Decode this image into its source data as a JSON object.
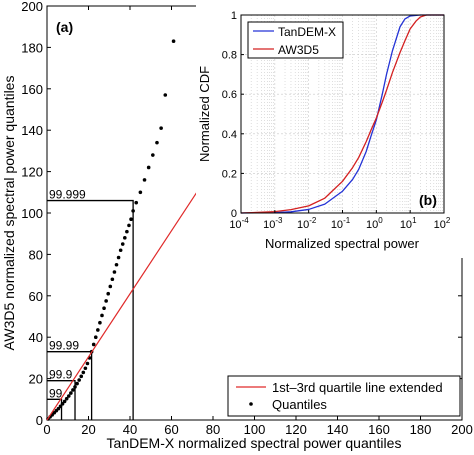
{
  "chart_data": [
    {
      "panel_label": "(a)",
      "type": "scatter",
      "xlabel": "TanDEM-X  normalized spectral power quantiles",
      "ylabel": "AW3D5 normalized spectral power quantiles",
      "xlim": [
        0,
        200
      ],
      "ylim": [
        0,
        200
      ],
      "xticks": [
        0,
        20,
        40,
        60,
        80,
        100,
        120,
        140,
        160,
        180,
        200
      ],
      "yticks": [
        0,
        20,
        40,
        60,
        80,
        100,
        120,
        140,
        160,
        180,
        200
      ],
      "grid": false,
      "legend_position": "bottom-right",
      "legend": [
        "1st–3rd quartile line extended",
        "Quantiles"
      ],
      "series": [
        {
          "name": "Quantiles",
          "style": "dots",
          "color": "#000000",
          "x": [
            0.5,
            1.5,
            2.5,
            3.5,
            4.5,
            5.5,
            6.5,
            7.5,
            8.5,
            9.5,
            10.5,
            11.5,
            12.5,
            13.5,
            14.5,
            15.5,
            16.5,
            17.5,
            18.5,
            19.5,
            20.5,
            21.5,
            22.5,
            23.5,
            24.5,
            25.5,
            26.5,
            27.5,
            28.5,
            29.5,
            30.5,
            31.5,
            32.5,
            33.5,
            34.5,
            35.5,
            36.5,
            37.5,
            38.5,
            39.5,
            40.5,
            41.5,
            43,
            45,
            47,
            49,
            51,
            53,
            55,
            57,
            61
          ],
          "y": [
            0.5,
            1.5,
            2.5,
            3.5,
            4.5,
            5.5,
            6.6,
            7.8,
            9,
            10.3,
            11.6,
            13,
            14.5,
            16,
            17.6,
            19.3,
            21.1,
            23,
            25,
            27.3,
            30,
            33,
            36.5,
            40,
            43.5,
            47,
            50.5,
            54,
            57.5,
            61,
            64.5,
            68,
            71.5,
            75,
            78.5,
            82,
            85,
            88,
            91,
            94,
            97,
            101,
            105,
            110,
            116,
            122,
            128,
            134,
            141,
            157,
            183
          ]
        },
        {
          "name": "1st–3rd quartile line extended",
          "style": "line",
          "color": "#e02a2a",
          "x": [
            0,
            73.5
          ],
          "y": [
            0,
            112
          ]
        }
      ],
      "annotations": [
        {
          "label": "99.999",
          "x": 41.5,
          "y": 106
        },
        {
          "label": "99.99",
          "x": 21.5,
          "y": 33
        },
        {
          "label": "99.9",
          "x": 13.5,
          "y": 19
        },
        {
          "label": "99",
          "x": 7,
          "y": 10
        }
      ]
    },
    {
      "panel_label": "(b)",
      "type": "line",
      "xlabel": "Normalized spectral power",
      "ylabel": "Normalized CDF",
      "xscale": "log",
      "xlim": [
        0.0001,
        100
      ],
      "ylim": [
        0,
        1
      ],
      "xticks": [
        "10-4",
        "10-3",
        "10-2",
        "10-1",
        "100",
        "101",
        "102"
      ],
      "yticks": [
        0,
        0.2,
        0.4,
        0.6,
        0.8,
        1
      ],
      "grid": true,
      "legend_position": "top-left",
      "legend": [
        "TanDEM-X",
        "AW3D5"
      ],
      "series": [
        {
          "name": "TanDEM-X",
          "color": "#2433d6",
          "x": [
            0.0001,
            0.0003,
            0.001,
            0.003,
            0.01,
            0.03,
            0.1,
            0.2,
            0.3,
            0.5,
            0.7,
            1,
            1.5,
            2,
            3,
            5,
            7,
            10,
            20,
            100
          ],
          "y": [
            0,
            0.001,
            0.002,
            0.006,
            0.018,
            0.045,
            0.11,
            0.17,
            0.22,
            0.31,
            0.39,
            0.47,
            0.6,
            0.7,
            0.82,
            0.94,
            0.98,
            0.995,
            1,
            1
          ]
        },
        {
          "name": "AW3D5",
          "color": "#d42020",
          "x": [
            0.0001,
            0.0003,
            0.001,
            0.003,
            0.01,
            0.03,
            0.1,
            0.2,
            0.3,
            0.5,
            0.7,
            1,
            1.5,
            2,
            3,
            5,
            7,
            10,
            15,
            20,
            30,
            100
          ],
          "y": [
            0,
            0.003,
            0.007,
            0.017,
            0.036,
            0.075,
            0.16,
            0.23,
            0.28,
            0.36,
            0.42,
            0.48,
            0.56,
            0.62,
            0.71,
            0.81,
            0.87,
            0.93,
            0.97,
            0.99,
            1,
            1
          ]
        }
      ]
    }
  ]
}
